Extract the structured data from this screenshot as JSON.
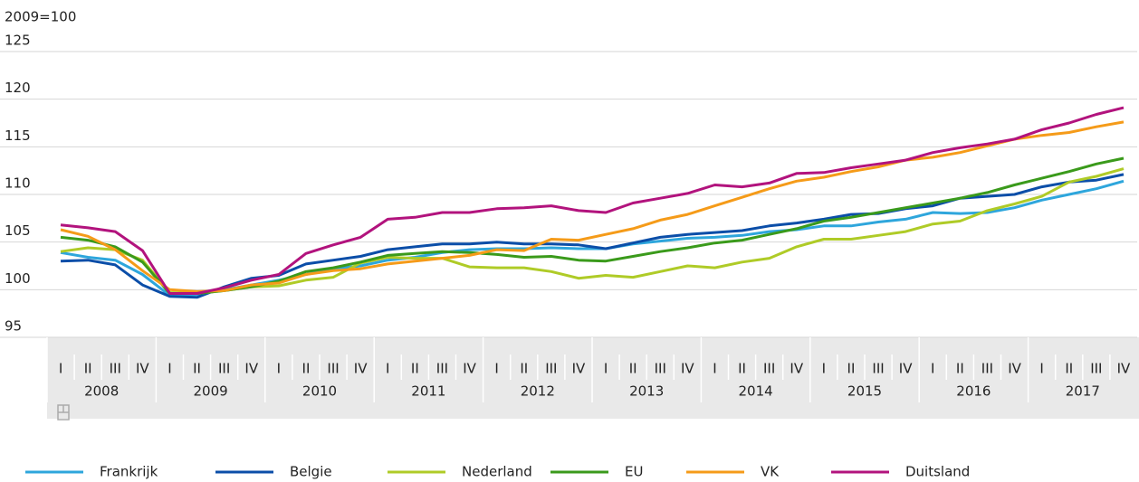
{
  "chart_data": {
    "type": "line",
    "y_axis_label": "2009=100",
    "categories": [
      "I",
      "II",
      "III",
      "IV",
      "I",
      "II",
      "III",
      "IV",
      "I",
      "II",
      "III",
      "IV",
      "I",
      "II",
      "III",
      "IV",
      "I",
      "II",
      "III",
      "IV",
      "I",
      "II",
      "III",
      "IV",
      "I",
      "II",
      "III",
      "IV",
      "I",
      "II",
      "III",
      "IV",
      "I",
      "II",
      "III",
      "IV",
      "I",
      "II",
      "III",
      "IV"
    ],
    "category_groups": [
      "2008",
      "2009",
      "2010",
      "2011",
      "2012",
      "2013",
      "2014",
      "2015",
      "2016",
      "2017"
    ],
    "ylim": [
      95,
      125
    ],
    "yticks": [
      95,
      100,
      105,
      110,
      115,
      120,
      125
    ],
    "grid": true,
    "legend": "bottom",
    "series": [
      {
        "name": "Frankrijk",
        "color": "#2ea6dc",
        "values": [
          103.9,
          103.4,
          103.1,
          101.6,
          99.4,
          99.5,
          100.0,
          100.5,
          101.0,
          101.6,
          102.2,
          102.5,
          103.1,
          103.4,
          103.9,
          104.2,
          104.3,
          104.3,
          104.4,
          104.3,
          104.3,
          104.8,
          105.1,
          105.4,
          105.5,
          105.7,
          106.1,
          106.3,
          106.7,
          106.7,
          107.1,
          107.4,
          108.1,
          108.0,
          108.1,
          108.6,
          109.4,
          110.0,
          110.6,
          111.4
        ]
      },
      {
        "name": "Belgie",
        "color": "#0b4ea8",
        "values": [
          103.0,
          103.1,
          102.6,
          100.5,
          99.3,
          99.2,
          100.3,
          101.2,
          101.5,
          102.7,
          103.1,
          103.5,
          104.2,
          104.5,
          104.8,
          104.8,
          105.0,
          104.8,
          104.8,
          104.7,
          104.3,
          104.9,
          105.5,
          105.8,
          106.0,
          106.2,
          106.7,
          107.0,
          107.4,
          107.9,
          108.0,
          108.5,
          108.8,
          109.6,
          109.8,
          110.0,
          110.8,
          111.3,
          111.5,
          112.1
        ]
      },
      {
        "name": "Nederland",
        "color": "#afcb27",
        "values": [
          104.0,
          104.4,
          104.2,
          103.1,
          99.7,
          99.6,
          99.9,
          100.3,
          100.4,
          101.0,
          101.3,
          102.8,
          103.4,
          103.3,
          103.3,
          102.4,
          102.3,
          102.3,
          101.9,
          101.2,
          101.5,
          101.3,
          101.9,
          102.5,
          102.3,
          102.9,
          103.3,
          104.5,
          105.3,
          105.3,
          105.7,
          106.1,
          106.9,
          107.2,
          108.3,
          109.0,
          109.8,
          111.3,
          111.9,
          112.7
        ]
      },
      {
        "name": "EU",
        "color": "#3a9a1b",
        "values": [
          105.5,
          105.2,
          104.5,
          102.9,
          99.6,
          99.6,
          99.9,
          100.3,
          100.9,
          101.9,
          102.3,
          102.9,
          103.6,
          103.8,
          104.0,
          103.9,
          103.7,
          103.4,
          103.5,
          103.1,
          103.0,
          103.5,
          104.0,
          104.4,
          104.9,
          105.2,
          105.8,
          106.4,
          107.2,
          107.6,
          108.1,
          108.6,
          109.1,
          109.6,
          110.2,
          111.0,
          111.7,
          112.4,
          113.2,
          113.8
        ]
      },
      {
        "name": "VK",
        "color": "#f59b19",
        "values": [
          106.3,
          105.6,
          104.2,
          102.0,
          100.0,
          99.8,
          99.9,
          100.5,
          100.7,
          101.6,
          102.0,
          102.2,
          102.7,
          103.0,
          103.3,
          103.6,
          104.2,
          104.1,
          105.3,
          105.2,
          105.8,
          106.4,
          107.3,
          107.9,
          108.8,
          109.7,
          110.6,
          111.4,
          111.8,
          112.4,
          112.9,
          113.6,
          113.9,
          114.4,
          115.1,
          115.8,
          116.2,
          116.5,
          117.1,
          117.6
        ]
      },
      {
        "name": "Duitsland",
        "color": "#b2137d",
        "values": [
          106.8,
          106.5,
          106.1,
          104.1,
          99.6,
          99.6,
          100.2,
          101.0,
          101.6,
          103.8,
          104.7,
          105.5,
          107.4,
          107.6,
          108.1,
          108.1,
          108.5,
          108.6,
          108.8,
          108.3,
          108.1,
          109.1,
          109.6,
          110.1,
          111.0,
          110.8,
          111.2,
          112.2,
          112.3,
          112.8,
          113.2,
          113.6,
          114.4,
          114.9,
          115.3,
          115.8,
          116.8,
          117.5,
          118.4,
          119.1
        ]
      }
    ]
  }
}
